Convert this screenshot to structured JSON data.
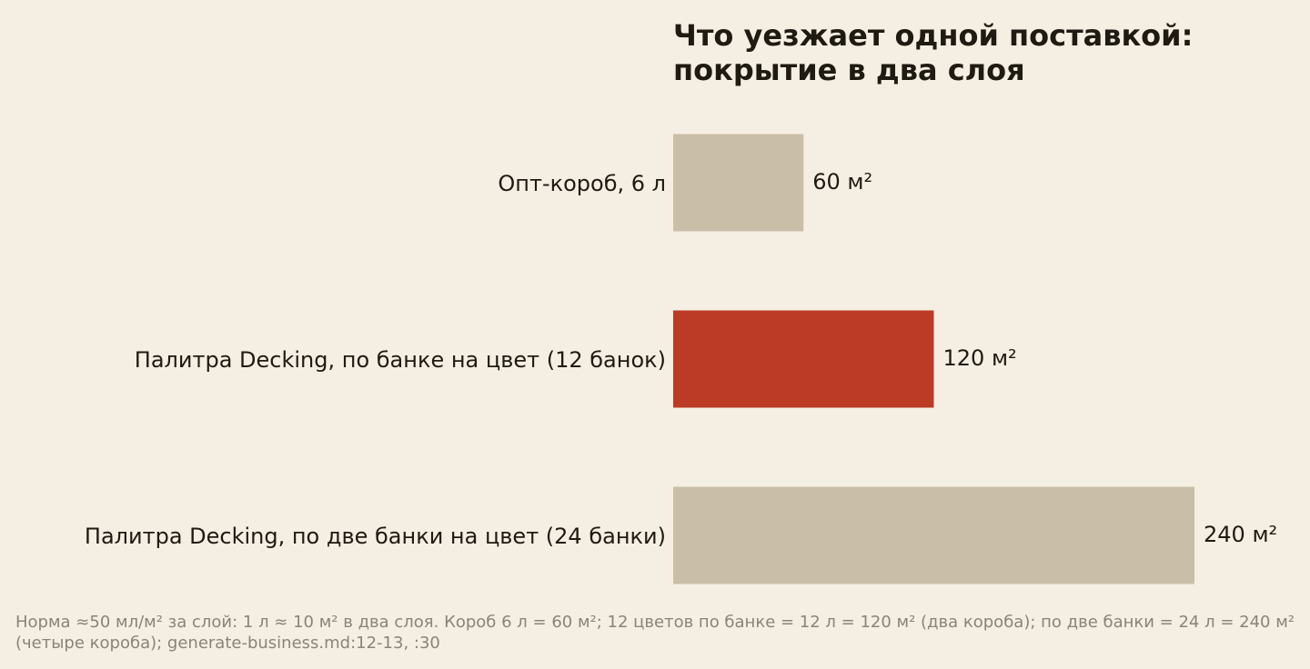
{
  "chart_data": {
    "type": "bar",
    "orientation": "horizontal",
    "title": "Что уезжает одной поставкой: покрытие в два слоя",
    "categories": [
      "Опт-короб, 6 л",
      "Палитра Decking, по банке на цвет (12 банок)",
      "Палитра Decking, по две банки на цвет (24 банки)"
    ],
    "values": [
      60,
      120,
      240
    ],
    "value_labels": [
      "60 м²",
      "120 м²",
      "240 м²"
    ],
    "colors": [
      "#c9bfa8",
      "#bb3b27",
      "#c9bfa8"
    ],
    "note": "Норма ≈50 мл/м² за слой: 1 л ≈ 10 м² в два слоя. Короб 6 л = 60 м²; 12 цветов по банке = 12 л = 120 м² (два короба); по две банки = 24 л = 240 м² (четыре короба); generate-business.md:12-13, :30"
  }
}
